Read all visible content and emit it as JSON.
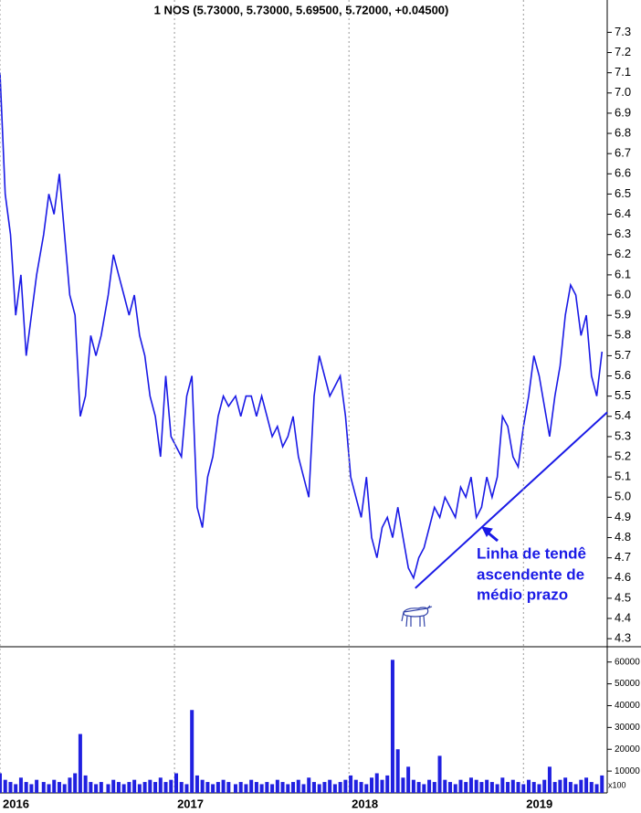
{
  "chart_data": [
    {
      "type": "line",
      "title": "1 NOS (5.73000, 5.73000, 5.69500, 5.72000, +0.04500)",
      "x": [
        2016.0,
        2016.03,
        2016.06,
        2016.09,
        2016.12,
        2016.15,
        2016.18,
        2016.21,
        2016.25,
        2016.28,
        2016.31,
        2016.34,
        2016.37,
        2016.4,
        2016.43,
        2016.46,
        2016.49,
        2016.52,
        2016.55,
        2016.58,
        2016.62,
        2016.65,
        2016.68,
        2016.71,
        2016.74,
        2016.77,
        2016.8,
        2016.83,
        2016.86,
        2016.89,
        2016.92,
        2016.95,
        2016.98,
        2017.01,
        2017.04,
        2017.07,
        2017.1,
        2017.13,
        2017.16,
        2017.19,
        2017.22,
        2017.25,
        2017.28,
        2017.31,
        2017.35,
        2017.38,
        2017.41,
        2017.44,
        2017.47,
        2017.5,
        2017.53,
        2017.56,
        2017.59,
        2017.62,
        2017.65,
        2017.68,
        2017.71,
        2017.74,
        2017.77,
        2017.8,
        2017.83,
        2017.86,
        2017.89,
        2017.92,
        2017.95,
        2017.98,
        2018.01,
        2018.04,
        2018.07,
        2018.1,
        2018.13,
        2018.16,
        2018.19,
        2018.22,
        2018.25,
        2018.28,
        2018.31,
        2018.34,
        2018.37,
        2018.4,
        2018.43,
        2018.46,
        2018.49,
        2018.52,
        2018.55,
        2018.58,
        2018.61,
        2018.64,
        2018.67,
        2018.7,
        2018.73,
        2018.76,
        2018.79,
        2018.82,
        2018.85,
        2018.88,
        2018.91,
        2018.94,
        2018.97,
        2019.0,
        2019.03,
        2019.06,
        2019.09,
        2019.12,
        2019.15,
        2019.18,
        2019.21,
        2019.24,
        2019.27,
        2019.3,
        2019.33,
        2019.36,
        2019.39,
        2019.42,
        2019.45
      ],
      "series": [
        {
          "color": "#1a1ae6",
          "values": [
            7.1,
            6.5,
            6.3,
            5.9,
            6.1,
            5.7,
            5.9,
            6.1,
            6.3,
            6.5,
            6.4,
            6.6,
            6.3,
            6.0,
            5.9,
            5.4,
            5.5,
            5.8,
            5.7,
            5.8,
            6.0,
            6.2,
            6.1,
            6.0,
            5.9,
            6.0,
            5.8,
            5.7,
            5.5,
            5.4,
            5.2,
            5.6,
            5.3,
            5.25,
            5.2,
            5.5,
            5.6,
            4.95,
            4.85,
            5.1,
            5.2,
            5.4,
            5.5,
            5.45,
            5.5,
            5.4,
            5.5,
            5.5,
            5.4,
            5.5,
            5.4,
            5.3,
            5.35,
            5.25,
            5.3,
            5.4,
            5.2,
            5.1,
            5.0,
            5.5,
            5.7,
            5.6,
            5.5,
            5.55,
            5.6,
            5.4,
            5.1,
            5.0,
            4.9,
            5.1,
            4.8,
            4.7,
            4.85,
            4.9,
            4.8,
            4.95,
            4.8,
            4.65,
            4.6,
            4.7,
            4.75,
            4.85,
            4.95,
            4.9,
            5.0,
            4.95,
            4.9,
            5.05,
            5.0,
            5.1,
            4.9,
            4.95,
            5.1,
            5.0,
            5.1,
            5.4,
            5.35,
            5.2,
            5.15,
            5.35,
            5.5,
            5.7,
            5.6,
            5.45,
            5.3,
            5.5,
            5.65,
            5.9,
            6.05,
            6.0,
            5.8,
            5.9,
            5.6,
            5.5,
            5.72
          ]
        }
      ],
      "trend_line": {
        "color": "#1a1ae6",
        "x": [
          2018.38,
          2019.48
        ],
        "values": [
          4.55,
          5.42
        ]
      },
      "annotation": [
        "Linha de tendê",
        "ascendente de",
        "médio prazo"
      ],
      "xlim": [
        2016,
        2019.48
      ],
      "ylim": [
        4.26,
        7.46
      ],
      "yticks": [
        4.3,
        4.4,
        4.5,
        4.6,
        4.7,
        4.8,
        4.9,
        {
          "value": 5,
          "label": "5.0"
        },
        5.1,
        5.2,
        5.3,
        5.4,
        5.5,
        5.6,
        5.7,
        5.8,
        5.9,
        {
          "value": 6,
          "label": "6.0"
        },
        6.1,
        6.2,
        6.3,
        6.4,
        6.5,
        6.6,
        6.7,
        6.8,
        6.9,
        {
          "value": 7,
          "label": "7.0"
        },
        7.1,
        7.2,
        7.3
      ]
    },
    {
      "type": "bar",
      "color": "#2020e0",
      "x": [
        2016.0,
        2016.03,
        2016.06,
        2016.09,
        2016.12,
        2016.15,
        2016.18,
        2016.21,
        2016.25,
        2016.28,
        2016.31,
        2016.34,
        2016.37,
        2016.4,
        2016.43,
        2016.46,
        2016.49,
        2016.52,
        2016.55,
        2016.58,
        2016.62,
        2016.65,
        2016.68,
        2016.71,
        2016.74,
        2016.77,
        2016.8,
        2016.83,
        2016.86,
        2016.89,
        2016.92,
        2016.95,
        2016.98,
        2017.01,
        2017.04,
        2017.07,
        2017.1,
        2017.13,
        2017.16,
        2017.19,
        2017.22,
        2017.25,
        2017.28,
        2017.31,
        2017.35,
        2017.38,
        2017.41,
        2017.44,
        2017.47,
        2017.5,
        2017.53,
        2017.56,
        2017.59,
        2017.62,
        2017.65,
        2017.68,
        2017.71,
        2017.74,
        2017.77,
        2017.8,
        2017.83,
        2017.86,
        2017.89,
        2017.92,
        2017.95,
        2017.98,
        2018.01,
        2018.04,
        2018.07,
        2018.1,
        2018.13,
        2018.16,
        2018.19,
        2018.22,
        2018.25,
        2018.28,
        2018.31,
        2018.34,
        2018.37,
        2018.4,
        2018.43,
        2018.46,
        2018.49,
        2018.52,
        2018.55,
        2018.58,
        2018.61,
        2018.64,
        2018.67,
        2018.7,
        2018.73,
        2018.76,
        2018.79,
        2018.82,
        2018.85,
        2018.88,
        2018.91,
        2018.94,
        2018.97,
        2019.0,
        2019.03,
        2019.06,
        2019.09,
        2019.12,
        2019.15,
        2019.18,
        2019.21,
        2019.24,
        2019.27,
        2019.3,
        2019.33,
        2019.36,
        2019.39,
        2019.42,
        2019.45
      ],
      "values": [
        9000,
        6000,
        5000,
        4000,
        7000,
        5000,
        4000,
        6000,
        5000,
        4000,
        6000,
        5000,
        4000,
        7000,
        9000,
        27000,
        8000,
        5000,
        4000,
        5000,
        4000,
        6000,
        5000,
        4000,
        5000,
        6000,
        4000,
        5000,
        6000,
        5000,
        7000,
        5000,
        6000,
        9000,
        5000,
        4000,
        38000,
        8000,
        6000,
        5000,
        4000,
        5000,
        6000,
        5000,
        4000,
        5000,
        4000,
        6000,
        5000,
        4000,
        5000,
        4000,
        6000,
        5000,
        4000,
        5000,
        6000,
        4000,
        7000,
        5000,
        4000,
        5000,
        6000,
        4000,
        5000,
        6000,
        8000,
        6000,
        5000,
        4000,
        7000,
        9000,
        6000,
        8000,
        61000,
        20000,
        7000,
        12000,
        6000,
        5000,
        4000,
        6000,
        5000,
        17000,
        6000,
        5000,
        4000,
        6000,
        5000,
        7000,
        6000,
        5000,
        6000,
        5000,
        4000,
        7000,
        5000,
        6000,
        5000,
        4000,
        6000,
        5000,
        4000,
        6000,
        12000,
        5000,
        6000,
        7000,
        5000,
        4000,
        6000,
        7000,
        5000,
        4000,
        8000
      ],
      "unit_label": "x100",
      "xlim": [
        2016,
        2019.48
      ],
      "xticks": [
        2016,
        2017,
        2018,
        2019
      ],
      "ylim": [
        0,
        67000
      ],
      "yticks": [
        10000,
        20000,
        30000,
        40000,
        50000,
        60000
      ]
    }
  ]
}
